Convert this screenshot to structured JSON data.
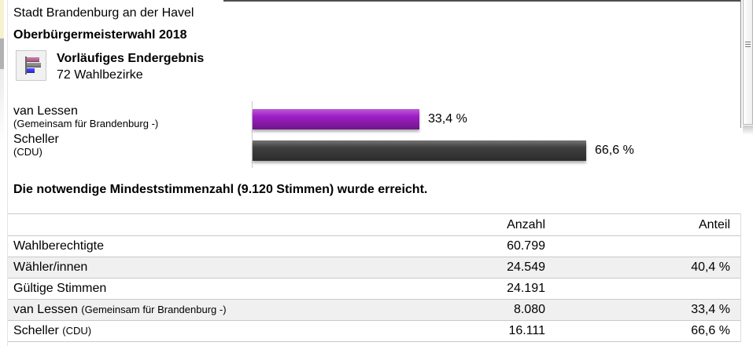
{
  "header": {
    "region": "Stadt Brandenburg an der Havel",
    "election": "Oberbürgermeisterwahl 2018"
  },
  "notes": {
    "threshold": "Die notwendige Mindeststimmenzahl (9.120 Stimmen) wurde erreicht."
  },
  "icons": {
    "result_icon": "bar-chart-icon",
    "scrollbar_grip": "grip-lines-icon"
  },
  "colors": {
    "bar_purple": "#a01ec6",
    "bar_darkgray": "#3f3f3f",
    "zebra_row": "#f0f0f0",
    "left_strip_yellow": "#f6f2d0",
    "row_border": "#c9c9c9"
  },
  "chart_data": [
    {
      "type": "bar",
      "orientation": "horizontal",
      "title": "Vorläufiges Endergebnis",
      "subtitle": "72 Wahlbezirke",
      "categories": [
        "van Lessen",
        "Scheller"
      ],
      "category_sublabels": [
        "(Gemeinsam für Brandenburg -)",
        "(CDU)"
      ],
      "values": [
        33.4,
        66.6
      ],
      "value_labels": [
        "33,4 %",
        "66,6 %"
      ],
      "bar_colors": [
        "#a01ec6",
        "#3f3f3f"
      ],
      "xlim": [
        0,
        100
      ],
      "grid": false,
      "legend": "none"
    },
    {
      "type": "table",
      "columns": [
        "",
        "Anzahl",
        "Anteil"
      ],
      "rows": [
        [
          "Wahlberechtigte",
          "",
          "60.799",
          ""
        ],
        [
          "Wähler/innen",
          "",
          "24.549",
          "40,4 %"
        ],
        [
          "Gültige Stimmen",
          "",
          "24.191",
          ""
        ],
        [
          "van Lessen",
          "(Gemeinsam für Brandenburg -)",
          "8.080",
          "33,4 %"
        ],
        [
          "Scheller",
          "(CDU)",
          "16.111",
          "66,6 %"
        ]
      ]
    }
  ]
}
